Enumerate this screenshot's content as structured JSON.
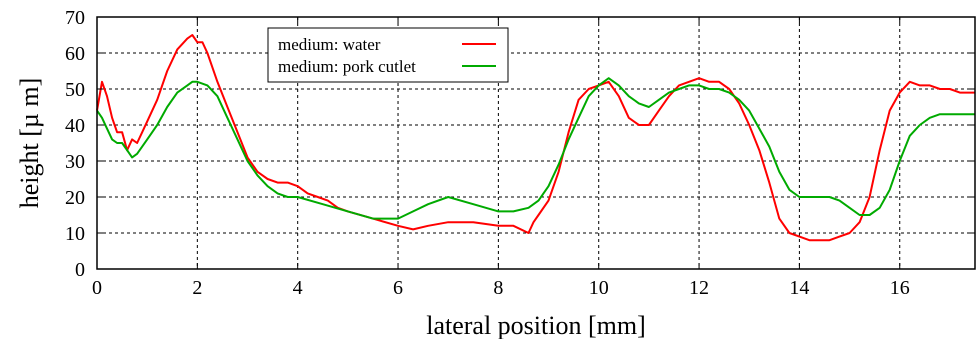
{
  "chart_data": {
    "type": "line",
    "xlabel": "lateral position [mm]",
    "ylabel": "height [µ m]",
    "xlim": [
      0,
      17.5
    ],
    "ylim": [
      0,
      70
    ],
    "xticks": [
      0,
      2,
      4,
      6,
      8,
      10,
      12,
      14,
      16
    ],
    "yticks": [
      0,
      10,
      20,
      30,
      40,
      50,
      60,
      70
    ],
    "grid": "dashed",
    "legend_position": "top-center",
    "series": [
      {
        "name": "medium: water",
        "color": "#ff0000",
        "x": [
          0,
          0.1,
          0.2,
          0.3,
          0.4,
          0.5,
          0.6,
          0.7,
          0.8,
          0.9,
          1.0,
          1.2,
          1.4,
          1.6,
          1.8,
          1.9,
          2.0,
          2.1,
          2.2,
          2.4,
          2.6,
          2.8,
          3.0,
          3.2,
          3.4,
          3.6,
          3.8,
          4.0,
          4.2,
          4.4,
          4.6,
          4.8,
          5.0,
          5.5,
          6.0,
          6.3,
          6.6,
          7.0,
          7.5,
          8.0,
          8.3,
          8.6,
          8.7,
          8.8,
          9.0,
          9.2,
          9.4,
          9.6,
          9.8,
          10.0,
          10.2,
          10.4,
          10.6,
          10.8,
          11.0,
          11.2,
          11.4,
          11.6,
          11.8,
          12.0,
          12.2,
          12.4,
          12.6,
          12.8,
          13.0,
          13.2,
          13.4,
          13.6,
          13.8,
          14.0,
          14.2,
          14.4,
          14.6,
          14.8,
          15.0,
          15.2,
          15.4,
          15.6,
          15.8,
          16.0,
          16.2,
          16.4,
          16.6,
          16.8,
          17.0,
          17.2,
          17.5
        ],
        "y": [
          44,
          52,
          48,
          42,
          38,
          38,
          33,
          36,
          35,
          38,
          41,
          47,
          55,
          61,
          64,
          65,
          63,
          63,
          60,
          52,
          45,
          38,
          31,
          27,
          25,
          24,
          24,
          23,
          21,
          20,
          19,
          17,
          16,
          14,
          12,
          11,
          12,
          13,
          13,
          12,
          12,
          10,
          13,
          15,
          19,
          27,
          38,
          47,
          50,
          51,
          52,
          48,
          42,
          40,
          40,
          44,
          48,
          51,
          52,
          53,
          52,
          52,
          50,
          46,
          40,
          33,
          24,
          14,
          10,
          9,
          8,
          8,
          8,
          9,
          10,
          13,
          20,
          33,
          44,
          49,
          52,
          51,
          51,
          50,
          50,
          49,
          49
        ]
      },
      {
        "name": "medium: pork cutlet",
        "color": "#00aa00",
        "x": [
          0,
          0.1,
          0.2,
          0.3,
          0.4,
          0.5,
          0.6,
          0.7,
          0.8,
          0.9,
          1.0,
          1.2,
          1.4,
          1.6,
          1.8,
          1.9,
          2.0,
          2.2,
          2.4,
          2.6,
          2.8,
          3.0,
          3.2,
          3.4,
          3.6,
          3.8,
          4.0,
          4.5,
          5.0,
          5.5,
          6.0,
          6.3,
          6.6,
          7.0,
          7.5,
          8.0,
          8.3,
          8.6,
          8.8,
          9.0,
          9.2,
          9.4,
          9.6,
          9.8,
          10.0,
          10.2,
          10.4,
          10.6,
          10.8,
          11.0,
          11.2,
          11.4,
          11.6,
          11.8,
          12.0,
          12.2,
          12.4,
          12.6,
          12.8,
          13.0,
          13.2,
          13.4,
          13.6,
          13.8,
          14.0,
          14.2,
          14.4,
          14.6,
          14.8,
          15.0,
          15.2,
          15.4,
          15.6,
          15.8,
          16.0,
          16.2,
          16.4,
          16.6,
          16.8,
          17.0,
          17.2,
          17.5
        ],
        "y": [
          44,
          42,
          39,
          36,
          35,
          35,
          33,
          31,
          32,
          34,
          36,
          40,
          45,
          49,
          51,
          52,
          52,
          51,
          48,
          42,
          36,
          30,
          26,
          23,
          21,
          20,
          20,
          18,
          16,
          14,
          14,
          16,
          18,
          20,
          18,
          16,
          16,
          17,
          19,
          23,
          29,
          36,
          42,
          48,
          51,
          53,
          51,
          48,
          46,
          45,
          47,
          49,
          50,
          51,
          51,
          50,
          50,
          49,
          47,
          44,
          39,
          34,
          27,
          22,
          20,
          20,
          20,
          20,
          19,
          17,
          15,
          15,
          17,
          22,
          30,
          37,
          40,
          42,
          43,
          43,
          43,
          43
        ]
      }
    ]
  }
}
